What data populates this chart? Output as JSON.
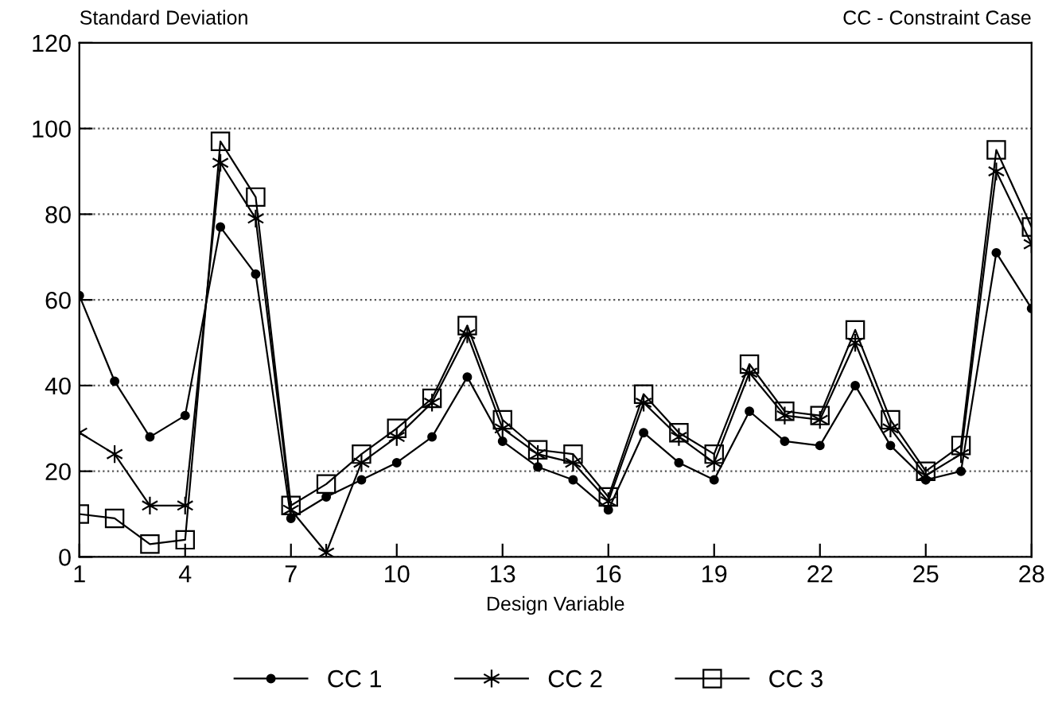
{
  "chart_data": {
    "type": "line",
    "title": "CC - Constraint Case",
    "ylabel": "Standard Deviation",
    "xlabel": "Design Variable",
    "x": [
      1,
      2,
      3,
      4,
      5,
      6,
      7,
      8,
      9,
      10,
      11,
      12,
      13,
      14,
      15,
      16,
      17,
      18,
      19,
      20,
      21,
      22,
      23,
      24,
      25,
      26,
      27,
      28
    ],
    "series": [
      {
        "name": "CC 1",
        "color": "#000000",
        "marker": "circle",
        "values": [
          61,
          41,
          28,
          33,
          77,
          66,
          9,
          14,
          18,
          22,
          28,
          42,
          27,
          21,
          18,
          11,
          29,
          22,
          18,
          34,
          27,
          26,
          40,
          26,
          18,
          20,
          71,
          58
        ]
      },
      {
        "name": "CC 2",
        "color": "#000000",
        "marker": "cross",
        "values": [
          29,
          24,
          12,
          12,
          92,
          79,
          11,
          1,
          22,
          28,
          36,
          52,
          30,
          24,
          22,
          13,
          36,
          28,
          22,
          43,
          33,
          32,
          50,
          30,
          19,
          24,
          90,
          73
        ]
      },
      {
        "name": "CC 3",
        "color": "#000000",
        "marker": "square",
        "values": [
          10,
          9,
          3,
          4,
          97,
          84,
          12,
          17,
          24,
          30,
          37,
          54,
          32,
          25,
          24,
          14,
          38,
          29,
          24,
          45,
          34,
          33,
          53,
          32,
          20,
          26,
          95,
          77
        ]
      }
    ],
    "xlim": [
      1,
      28
    ],
    "xticks": [
      1,
      4,
      7,
      10,
      13,
      16,
      19,
      22,
      25,
      28
    ],
    "ylim": [
      0,
      120
    ],
    "yticks": [
      0,
      20,
      40,
      60,
      80,
      100,
      120
    ],
    "grid": "y",
    "legend": "bottom",
    "line_style": "solid"
  }
}
